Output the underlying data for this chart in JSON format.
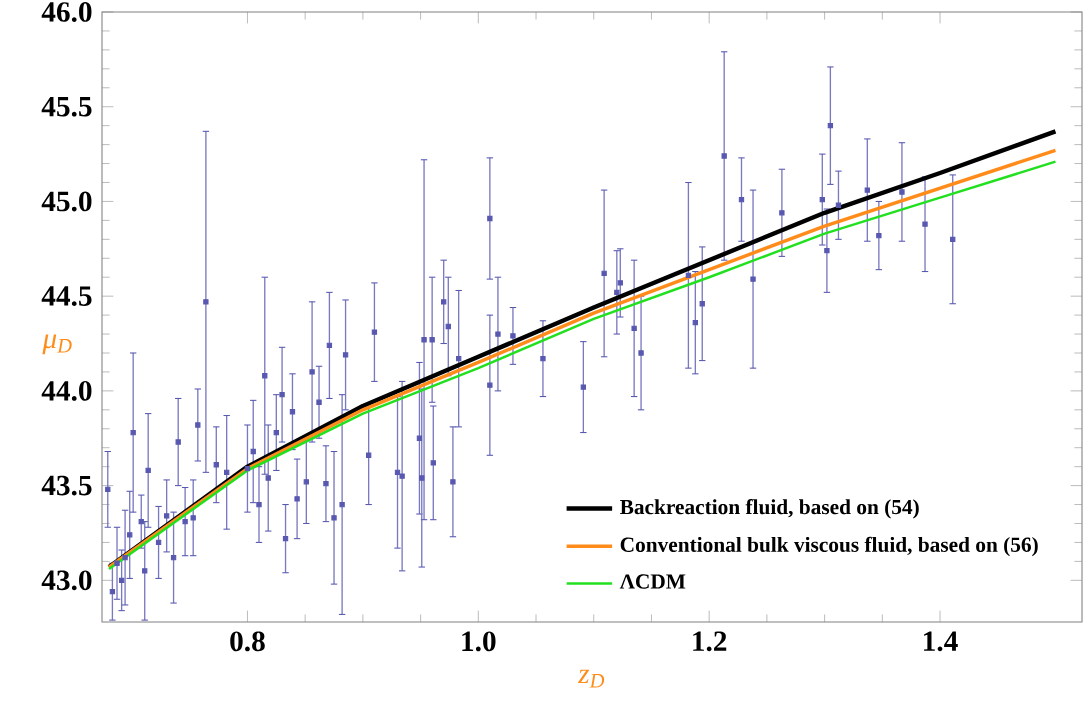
{
  "chart_data": {
    "type": "line",
    "xlabel": "z$_{D}$",
    "ylabel": "μ$_{D}$",
    "xlim": [
      0.674,
      1.523
    ],
    "ylim": [
      42.78,
      46.0
    ],
    "xticks": [
      {
        "value": 0.8,
        "label": "0.8"
      },
      {
        "value": 1.0,
        "label": "1.0"
      },
      {
        "value": 1.2,
        "label": "1.2"
      },
      {
        "value": 1.4,
        "label": "1.4"
      }
    ],
    "yticks": [
      {
        "value": 43.0,
        "label": "43.0"
      },
      {
        "value": 43.5,
        "label": "43.5"
      },
      {
        "value": 44.0,
        "label": "44.0"
      },
      {
        "value": 44.5,
        "label": "44.5"
      },
      {
        "value": 45.0,
        "label": "45.0"
      },
      {
        "value": 45.5,
        "label": "45.5"
      },
      {
        "value": 46.0,
        "label": "46.0"
      }
    ],
    "legend": "bottom right",
    "grid": false,
    "series": [
      {
        "type": "scatter",
        "color": "#5858b0",
        "marker": "square",
        "x": [
          0.679,
          0.683,
          0.687,
          0.691,
          0.694,
          0.698,
          0.701,
          0.708,
          0.711,
          0.714,
          0.723,
          0.73,
          0.736,
          0.74,
          0.746,
          0.753,
          0.757,
          0.764,
          0.773,
          0.782,
          0.8,
          0.805,
          0.81,
          0.815,
          0.818,
          0.825,
          0.83,
          0.833,
          0.839,
          0.843,
          0.851,
          0.856,
          0.862,
          0.868,
          0.871,
          0.875,
          0.882,
          0.885,
          0.905,
          0.91,
          0.93,
          0.934,
          0.949,
          0.951,
          0.953,
          0.96,
          0.961,
          0.97,
          0.974,
          0.978,
          0.983,
          1.01,
          1.01,
          1.017,
          1.03,
          1.056,
          1.091,
          1.109,
          1.12,
          1.123,
          1.135,
          1.141,
          1.182,
          1.188,
          1.194,
          1.213,
          1.228,
          1.238,
          1.263,
          1.298,
          1.302,
          1.305,
          1.312,
          1.337,
          1.347,
          1.367,
          1.387,
          1.411
        ],
        "values": [
          43.48,
          42.94,
          43.09,
          43.0,
          43.12,
          43.24,
          43.78,
          43.31,
          43.05,
          43.58,
          43.2,
          43.34,
          43.12,
          43.73,
          43.31,
          43.33,
          43.82,
          44.47,
          43.61,
          43.57,
          43.59,
          43.68,
          43.4,
          44.08,
          43.54,
          43.78,
          43.98,
          43.22,
          43.89,
          43.43,
          43.52,
          44.1,
          43.94,
          43.51,
          44.24,
          43.33,
          43.4,
          44.19,
          43.66,
          44.31,
          43.57,
          43.55,
          43.75,
          43.54,
          44.27,
          44.27,
          43.62,
          44.47,
          44.34,
          43.52,
          44.17,
          44.91,
          44.03,
          44.3,
          44.29,
          44.17,
          44.02,
          44.62,
          44.52,
          44.57,
          44.33,
          44.2,
          44.61,
          44.36,
          44.46,
          45.24,
          45.01,
          44.59,
          44.94,
          45.01,
          44.74,
          45.4,
          44.98,
          45.06,
          44.82,
          45.05,
          44.88,
          44.8
        ],
        "errors": [
          0.2,
          0.15,
          0.19,
          0.16,
          0.25,
          0.23,
          0.42,
          0.14,
          0.26,
          0.3,
          0.19,
          0.19,
          0.24,
          0.23,
          0.18,
          0.2,
          0.19,
          0.9,
          0.2,
          0.3,
          0.23,
          0.27,
          0.2,
          0.52,
          0.28,
          0.2,
          0.25,
          0.18,
          0.2,
          0.21,
          0.22,
          0.37,
          0.19,
          0.2,
          0.28,
          0.35,
          0.58,
          0.29,
          0.26,
          0.26,
          0.4,
          0.5,
          0.4,
          0.47,
          0.95,
          0.33,
          0.3,
          0.22,
          0.26,
          0.29,
          0.36,
          0.32,
          0.37,
          0.3,
          0.15,
          0.2,
          0.24,
          0.44,
          0.22,
          0.18,
          0.36,
          0.3,
          0.49,
          0.27,
          0.3,
          0.55,
          0.22,
          0.47,
          0.23,
          0.24,
          0.22,
          0.31,
          0.18,
          0.27,
          0.18,
          0.26,
          0.25,
          0.34
        ]
      },
      {
        "name": "Backreaction fluid, based on (54)",
        "color": "#000000",
        "x": [
          0.68,
          0.8,
          0.9,
          1.0,
          1.1,
          1.2,
          1.3,
          1.4,
          1.5
        ],
        "values": [
          43.07,
          43.6,
          43.92,
          44.18,
          44.44,
          44.69,
          44.94,
          45.15,
          45.37
        ]
      },
      {
        "name": "Conventional bulk viscous fluid, based on (56)",
        "color": "#ff8c1a",
        "x": [
          0.68,
          0.8,
          0.9,
          1.0,
          1.1,
          1.2,
          1.3,
          1.4,
          1.5
        ],
        "values": [
          43.07,
          43.59,
          43.9,
          44.15,
          44.41,
          44.64,
          44.87,
          45.07,
          45.27
        ]
      },
      {
        "name": "ΛCDM",
        "color": "#22e01f",
        "x": [
          0.68,
          0.8,
          0.9,
          1.0,
          1.1,
          1.2,
          1.3,
          1.4,
          1.5
        ],
        "values": [
          43.06,
          43.58,
          43.88,
          44.12,
          44.38,
          44.6,
          44.83,
          45.02,
          45.21
        ]
      }
    ]
  }
}
